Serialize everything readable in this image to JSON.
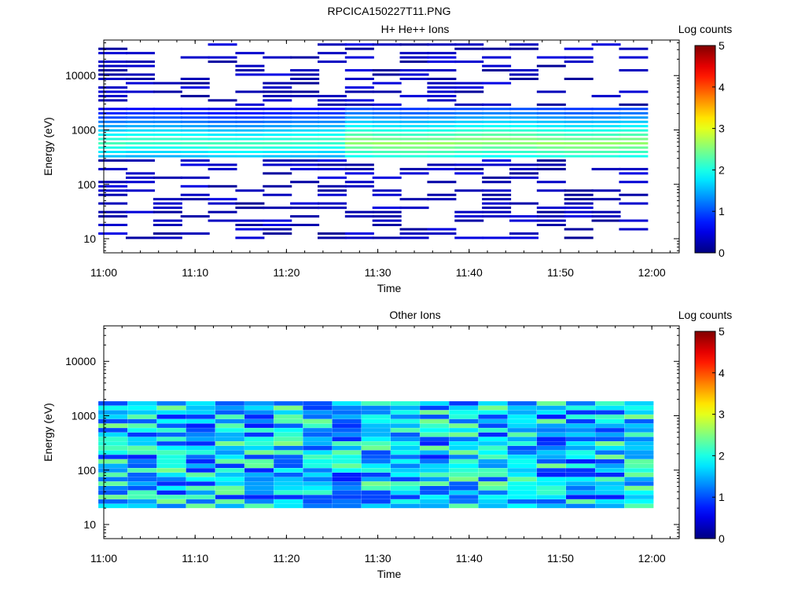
{
  "figure": {
    "title": "RPCICA150227T11.PNG"
  },
  "chart_data": [
    {
      "type": "heatmap",
      "title": "H+ He++ Ions",
      "xlabel": "Time",
      "ylabel": "Energy (eV)",
      "x_ticks": [
        "11:00",
        "11:10",
        "11:20",
        "11:30",
        "11:40",
        "11:50",
        "12:00"
      ],
      "xlim": [
        "11:00",
        "12:03"
      ],
      "y_scale": "log",
      "ylim": [
        5.5,
        45000
      ],
      "y_ticks": [
        10,
        100,
        1000,
        10000
      ],
      "y_tick_labels": [
        "10",
        "100",
        "1000",
        "10000"
      ],
      "colorbar": {
        "label": "Log counts",
        "min": 0,
        "max": 5,
        "ticks": [
          "0",
          "1",
          "2",
          "3",
          "4",
          "5"
        ],
        "colormap": "jet"
      },
      "time_bins": [
        "11:01",
        "11:04",
        "11:07",
        "11:10",
        "11:13",
        "11:16",
        "11:19",
        "11:22",
        "11:25",
        "11:28",
        "11:31",
        "11:34",
        "11:37",
        "11:40",
        "11:43",
        "11:46",
        "11:49",
        "11:52",
        "11:55",
        "11:58"
      ],
      "energy_bins_eV": [
        10,
        12,
        14,
        17,
        21,
        25,
        30,
        36,
        43,
        52,
        63,
        76,
        91,
        110,
        132,
        159,
        192,
        231,
        278,
        335,
        404,
        486,
        586,
        706,
        851,
        1025,
        1235,
        1488,
        1793,
        2160,
        2602,
        3135,
        3777,
        4551,
        5483,
        6606,
        7959,
        9589,
        11553,
        13920,
        16771,
        20206,
        24344,
        29330,
        35337
      ],
      "log_counts": [
        [
          0,
          0,
          0,
          0,
          0,
          1,
          0,
          0,
          0,
          0,
          0,
          0,
          0,
          0,
          0.3,
          0,
          0.2,
          0,
          0,
          0.3,
          0,
          0.3,
          0,
          0.2,
          0.3,
          0,
          0,
          0,
          0,
          0,
          0,
          0.3,
          0,
          0.2,
          0,
          0,
          0.3,
          0,
          0,
          0,
          0.3,
          0,
          0,
          0,
          0.3
        ],
        [
          0.2,
          0,
          0,
          0.2,
          0,
          0.3,
          0,
          0,
          0,
          0.3,
          0,
          0,
          0,
          0,
          0,
          0,
          0,
          0,
          0,
          0,
          0,
          0,
          0,
          0,
          0,
          0,
          0,
          0,
          0,
          0.3,
          0,
          0,
          0,
          0,
          0,
          0,
          0,
          0,
          0,
          0,
          0,
          0,
          0,
          0,
          0.3
        ],
        [
          0.3,
          0,
          0.2,
          0,
          0,
          0,
          0.3,
          0,
          0,
          0,
          0,
          0.2,
          0,
          0,
          0,
          0,
          0,
          0,
          0,
          0,
          0,
          0,
          0,
          0,
          0,
          0,
          0,
          0,
          0.2,
          0,
          0,
          0.2,
          0,
          0,
          0.2,
          0,
          0.3,
          0,
          0,
          0,
          0,
          0,
          0,
          0,
          0.2
        ],
        [
          0,
          0,
          0,
          0,
          0,
          0.3,
          0.2,
          0,
          0,
          0,
          0,
          0,
          0.3,
          0,
          0,
          0,
          0,
          0,
          0,
          0,
          0,
          0,
          0,
          0,
          0,
          0,
          0,
          0,
          0,
          0,
          0,
          0,
          0,
          0,
          0,
          0,
          0,
          0,
          0,
          0,
          0,
          0,
          0,
          0,
          0
        ],
        [
          0,
          0.3,
          0,
          0.2,
          0,
          0,
          0,
          0,
          0,
          0.3,
          0,
          0.2,
          0,
          0,
          0,
          0,
          0.2,
          0,
          0,
          0,
          0,
          0,
          0,
          0,
          0,
          0,
          0,
          0,
          0,
          0,
          0,
          0,
          0.2,
          0,
          0,
          0,
          0,
          0,
          0,
          0,
          0,
          0.2,
          0,
          0,
          0
        ],
        [
          0,
          0,
          0,
          0,
          0,
          0,
          0,
          0,
          0,
          0,
          0,
          0,
          0,
          0,
          0,
          0,
          0,
          0,
          0,
          0,
          0,
          0,
          0,
          0,
          0,
          0,
          0,
          0,
          0,
          0,
          0,
          0,
          0,
          0,
          0,
          0,
          0,
          0,
          0,
          0,
          0,
          0,
          0,
          0,
          0
        ],
        [
          0,
          0,
          0,
          0.2,
          0,
          0,
          0,
          0,
          0,
          0,
          0,
          0,
          0,
          0,
          0,
          0,
          0,
          0,
          0,
          0,
          0,
          0,
          0,
          0,
          0,
          0,
          0,
          0,
          0,
          0,
          0,
          0,
          0,
          0,
          0,
          0,
          0,
          0,
          0,
          0,
          0,
          0,
          0,
          0,
          0
        ],
        [
          0,
          0,
          0,
          0,
          0,
          0,
          0,
          0,
          0,
          0,
          0,
          0,
          0,
          0,
          0,
          0,
          0,
          0,
          0,
          0,
          0,
          0,
          0,
          0,
          0,
          0,
          0,
          0,
          0,
          0,
          0,
          0,
          0,
          0,
          0,
          0,
          0,
          0,
          0,
          0,
          0,
          0,
          0,
          0,
          0
        ],
        [
          0,
          0,
          0,
          0,
          0,
          0,
          0,
          0,
          0,
          0,
          0,
          0,
          0,
          0,
          0,
          0,
          0,
          0,
          0,
          0,
          0,
          0,
          0,
          0,
          0,
          0,
          0,
          0,
          0,
          0,
          0,
          0,
          0,
          0,
          0,
          0,
          0,
          0,
          0,
          0,
          0,
          0,
          0,
          0,
          0
        ],
        [
          0,
          0,
          0,
          0,
          0,
          0,
          0,
          0,
          0,
          0,
          0,
          0,
          0,
          0,
          0,
          0,
          0,
          0,
          0,
          0,
          0,
          0,
          0,
          0,
          0,
          0,
          0,
          0,
          0,
          0,
          0,
          0,
          0,
          0,
          0,
          0,
          0,
          0,
          0,
          0,
          0,
          0,
          0,
          0,
          0
        ],
        [
          0,
          0,
          0,
          0,
          0,
          0,
          0,
          0,
          0,
          0,
          0,
          0,
          0,
          0,
          0,
          0,
          0,
          0,
          0,
          0,
          0,
          0,
          0,
          0,
          0,
          0,
          0,
          0,
          0,
          0,
          0,
          0,
          0,
          0,
          0,
          0,
          0,
          0,
          0,
          0,
          0,
          0,
          0,
          0,
          0
        ],
        [
          0,
          0,
          0,
          0,
          0,
          0,
          0,
          0,
          0,
          0,
          0,
          0,
          0,
          0,
          0,
          0,
          0,
          0,
          0,
          0,
          0,
          0,
          0,
          0,
          0,
          0,
          0,
          0,
          0,
          0,
          0,
          0,
          0,
          0,
          0,
          0,
          0,
          0,
          0,
          0,
          0,
          0,
          0,
          0,
          0
        ],
        [
          0,
          0,
          0,
          0,
          0,
          0,
          0,
          0,
          0,
          0,
          0,
          0,
          0,
          0,
          0,
          0,
          0,
          0,
          0,
          0,
          0,
          0,
          0,
          0,
          0,
          0,
          0,
          0,
          0,
          0,
          0,
          0,
          0,
          0,
          0,
          0,
          0,
          0,
          0,
          0,
          0,
          0,
          0,
          0,
          0
        ],
        [
          0,
          0,
          0,
          0,
          0,
          0,
          0,
          0,
          0,
          0,
          0,
          0,
          0,
          0,
          0,
          0,
          0,
          0,
          0,
          0,
          0,
          0,
          0,
          0,
          0,
          0,
          0,
          0,
          0,
          0,
          0,
          0,
          0,
          0,
          0,
          0,
          0,
          0,
          0,
          0,
          0,
          0,
          0,
          0,
          0
        ],
        [
          0,
          0,
          0,
          0,
          0,
          0,
          0,
          0,
          0,
          0,
          0,
          0,
          0,
          0,
          0,
          0,
          0,
          0,
          0,
          0,
          0,
          0,
          0,
          0,
          0,
          0,
          0,
          0,
          0,
          0,
          0,
          0,
          0,
          0,
          0,
          0,
          0,
          0,
          0,
          0,
          0,
          0,
          0,
          0,
          0
        ],
        [
          0,
          0,
          0,
          0,
          0,
          0,
          0,
          0,
          0,
          0,
          0,
          0,
          0,
          0,
          0,
          0,
          0,
          0,
          0,
          0,
          0,
          0,
          0,
          0,
          0,
          0,
          0,
          0,
          0,
          0,
          0,
          0,
          0,
          0,
          0,
          0,
          0,
          0,
          0,
          0,
          0,
          0,
          0,
          0,
          0
        ],
        [
          0,
          0,
          0,
          0,
          0,
          0,
          0,
          0,
          0,
          0,
          0,
          0,
          0,
          0,
          0,
          0,
          0,
          0,
          0,
          0,
          0,
          0,
          0,
          0,
          0,
          0,
          0,
          0,
          0,
          0,
          0,
          0,
          0,
          0,
          0,
          0,
          0,
          0,
          0,
          0,
          0,
          0,
          0,
          0,
          0
        ],
        [
          0,
          0,
          0,
          0,
          0,
          0,
          0,
          0,
          0,
          0,
          0,
          0,
          0,
          0,
          0,
          0,
          0,
          0,
          0,
          0,
          0,
          0,
          0,
          0,
          0,
          0,
          0,
          0,
          0,
          0,
          0,
          0,
          0,
          0,
          0,
          0,
          0,
          0,
          0,
          0,
          0,
          0,
          0,
          0,
          0
        ],
        [
          0,
          0,
          0,
          0,
          0,
          0,
          0,
          0,
          0,
          0,
          0,
          0,
          0,
          0,
          0,
          0,
          0,
          0,
          0,
          0,
          0,
          0,
          0,
          0,
          0,
          0,
          0,
          0,
          0,
          0,
          0,
          0,
          0,
          0,
          0,
          0,
          0,
          0,
          0,
          0,
          0,
          0,
          0,
          0,
          0
        ],
        [
          0,
          0,
          0,
          0,
          0,
          0,
          0,
          0,
          0,
          0,
          0,
          0,
          0,
          0,
          0,
          0,
          0,
          0,
          0,
          0,
          0,
          0,
          0,
          0,
          0,
          0,
          0,
          0,
          0,
          0,
          0,
          0,
          0,
          0,
          0,
          0,
          0,
          0,
          0,
          0,
          0,
          0,
          0,
          0,
          0
        ]
      ]
    },
    {
      "type": "heatmap",
      "title": "Other Ions",
      "xlabel": "Time",
      "ylabel": "Energy (eV)",
      "x_ticks": [
        "11:00",
        "11:10",
        "11:20",
        "11:30",
        "11:40",
        "11:50",
        "12:00"
      ],
      "xlim": [
        "11:00",
        "12:03"
      ],
      "y_scale": "log",
      "ylim": [
        5.5,
        45000
      ],
      "y_ticks": [
        10,
        100,
        1000,
        10000
      ],
      "y_tick_labels": [
        "10",
        "100",
        "1000",
        "10000"
      ],
      "colorbar": {
        "label": "Log counts",
        "min": 0,
        "max": 5,
        "ticks": [
          "0",
          "1",
          "2",
          "3",
          "4",
          "5"
        ],
        "colormap": "jet"
      }
    }
  ]
}
